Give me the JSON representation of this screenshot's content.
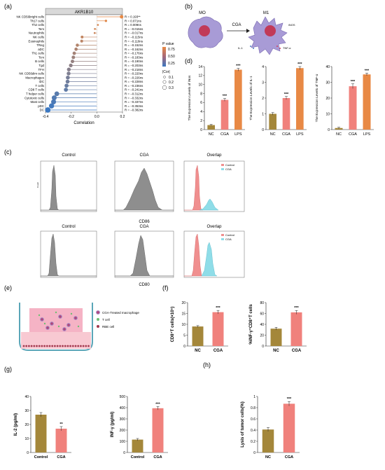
{
  "panel_labels": {
    "a": "(a)",
    "b": "(b)",
    "c": "(c)",
    "d": "(d)",
    "e": "(e)",
    "f": "(f)",
    "g": "(g)",
    "h": "(h)"
  },
  "colors": {
    "nc": "#a4873a",
    "cga": "#f0817c",
    "lps": "#e88945",
    "grey_hist": "#8e8e8e",
    "red_hist": "#f08f8f",
    "cyan_hist": "#8fdde8",
    "lollipop_high": "#e88945",
    "lollipop_low": "#3b78c2"
  },
  "panel_a": {
    "gene": "AKR1B10",
    "xlabel": "Correlation",
    "legend_pvalue_title": "P value",
    "legend_pvalue_ticks": [
      "0.75",
      "0.50",
      "0.25"
    ],
    "legend_cor_title": "|Cor|",
    "legend_cor_ticks": [
      "0.1",
      "0.2",
      "0.3"
    ]
  },
  "panel_b": {
    "m0": "MO",
    "m1": "M1",
    "arrow": "CGA",
    "inos": "iNOS",
    "il1": "IL-1",
    "tnf": "TNF-α"
  },
  "panel_c": {
    "row1": {
      "titles": [
        "Control",
        "CGA",
        "Overlap"
      ],
      "marker": "CD86"
    },
    "row2": {
      "titles": [
        "Control",
        "CGA",
        "Overlap"
      ],
      "marker": "CD80"
    },
    "legend": [
      "Control",
      "CGA"
    ],
    "ylabel": "Count"
  },
  "panel_e": {
    "legend": [
      "CGA-Treated macrophage",
      "T cell",
      "RBE cell"
    ]
  },
  "chart_data": [
    {
      "type": "lollipop",
      "panel": "a",
      "title": "AKR1B10",
      "xlabel": "Correlation",
      "xlim": [
        -0.4,
        0.2
      ],
      "x_ticks": [
        "-0.4",
        "-0.2",
        "0.0",
        "0.2"
      ],
      "categories": [
        "NK CD56bright cells",
        "Th17 cells",
        "Th2 cells",
        "Tem",
        "Neutrophils",
        "NK cells",
        "Eosinophils",
        "TReg",
        "aDC",
        "Th1 cells",
        "Tcm",
        "B cells",
        "Tgd",
        "TFH",
        "NK CD56dim cells",
        "Macrophages",
        "iDC",
        "T cells",
        "CD8 T cells",
        "T helper cells",
        "Cytotoxic cells",
        "Mast cells",
        "pDC",
        "DC"
      ],
      "values": [
        0.193,
        0.071,
        0.009,
        -0.015,
        -0.017,
        -0.115,
        -0.118,
        -0.152,
        -0.162,
        -0.176,
        -0.183,
        -0.19,
        -0.203,
        -0.218,
        -0.22,
        -0.226,
        -0.228,
        -0.236,
        -0.241,
        -0.312,
        -0.332,
        -0.337,
        -0.353,
        -0.382
      ],
      "labels": [
        "R = 0.193**",
        "R = 0.071ns",
        "R = 0.009ns",
        "R = −0.015ns",
        "R = −0.017ns",
        "R = −0.115ns",
        "R = −0.118ns",
        "R = −0.152ns",
        "R = −0.162ns",
        "R = −0.176ns",
        "R = −0.183ns",
        "R = −0.190ns",
        "R = −0.203ns",
        "R = −0.218ns",
        "R = −0.220ns",
        "R = −0.226ns",
        "R = −0.228ns",
        "R = −0.236ns",
        "R = −0.241ns",
        "R = −0.312ns",
        "R = −0.332ns",
        "R = −0.337ns",
        "R = −0.353ns",
        "R = −0.382ns"
      ]
    },
    {
      "type": "bar",
      "panel": "d",
      "ylabel": "The Expression Levels of iNos",
      "categories": [
        "NC",
        "CGA",
        "LPS"
      ],
      "values": [
        1.0,
        6.6,
        13.3
      ],
      "errors": [
        0.15,
        0.3,
        0.3
      ],
      "sig": [
        "",
        "***",
        "***"
      ],
      "ylim": [
        0,
        14
      ],
      "yticks": [
        0,
        2,
        4,
        6,
        8,
        10,
        12,
        14
      ]
    },
    {
      "type": "bar",
      "panel": "d",
      "ylabel": "The Expression Levels of IL-1",
      "categories": [
        "NC",
        "CGA",
        "LPS"
      ],
      "values": [
        1.0,
        2.0,
        3.9
      ],
      "errors": [
        0.08,
        0.1,
        0.1
      ],
      "sig": [
        "",
        "***",
        "***"
      ],
      "ylim": [
        0,
        4
      ],
      "yticks": [
        0,
        1,
        2,
        3,
        4
      ]
    },
    {
      "type": "bar",
      "panel": "d",
      "ylabel": "The Expression Levels of TNF-α",
      "categories": [
        "NC",
        "CGA",
        "LPS"
      ],
      "values": [
        1.0,
        27.5,
        35.0
      ],
      "errors": [
        0.5,
        1.5,
        0.8
      ],
      "sig": [
        "",
        "***",
        "***"
      ],
      "ylim": [
        0,
        40
      ],
      "yticks": [
        0,
        10,
        20,
        30,
        40
      ]
    },
    {
      "type": "bar",
      "panel": "f",
      "ylabel": "CD8⁺T cells(×10⁵)",
      "categories": [
        "NC",
        "CGA"
      ],
      "values": [
        9.0,
        15.6
      ],
      "errors": [
        0.4,
        0.8
      ],
      "sig": [
        "",
        "***"
      ],
      "ylim": [
        0,
        20
      ],
      "yticks": [
        0,
        5,
        10,
        15,
        20
      ]
    },
    {
      "type": "bar",
      "panel": "f",
      "ylabel": "%INF-γ⁺CD8⁺T cells",
      "categories": [
        "NC",
        "CGA"
      ],
      "values": [
        32,
        62
      ],
      "errors": [
        2.5,
        3.5
      ],
      "sig": [
        "",
        "***"
      ],
      "ylim": [
        0,
        80
      ],
      "yticks": [
        0,
        20,
        40,
        60,
        80
      ]
    },
    {
      "type": "bar",
      "panel": "g",
      "ylabel": "IL-2 (pg/ml)",
      "categories": [
        "Control",
        "CGA"
      ],
      "values": [
        27,
        17
      ],
      "errors": [
        1.5,
        1.5
      ],
      "sig": [
        "",
        "**"
      ],
      "ylim": [
        0,
        40
      ],
      "yticks": [
        0,
        10,
        20,
        30,
        40
      ]
    },
    {
      "type": "bar",
      "panel": "g",
      "ylabel": "INF-γ (pg/ml)",
      "categories": [
        "Control",
        "CGA"
      ],
      "values": [
        115,
        395
      ],
      "errors": [
        10,
        15
      ],
      "sig": [
        "",
        "***"
      ],
      "ylim": [
        0,
        500
      ],
      "yticks": [
        0,
        100,
        200,
        300,
        400,
        500
      ]
    },
    {
      "type": "bar",
      "panel": "h",
      "ylabel": "Lysis of tumor cells(%)",
      "categories": [
        "NC",
        "CGA"
      ],
      "values": [
        0.41,
        0.87
      ],
      "errors": [
        0.035,
        0.04
      ],
      "sig": [
        "",
        "***"
      ],
      "ylim": [
        0,
        1.0
      ],
      "yticks": [
        0,
        0.2,
        0.4,
        0.6,
        0.8,
        1.0
      ]
    }
  ]
}
